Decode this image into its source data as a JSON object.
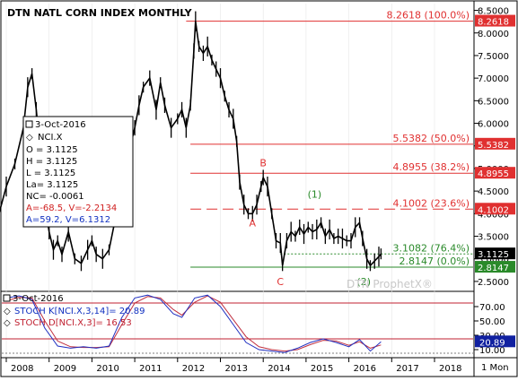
{
  "chart_data": {
    "type": "line",
    "title": "DTN NATL CORN INDEX MONTHLY",
    "watermark": "DTN ProphetX®",
    "interval_label": "1 Mon",
    "x_ticks": [
      "2008",
      "2009",
      "2010",
      "2011",
      "2012",
      "2013",
      "2014",
      "2015",
      "2016",
      "2017",
      "2018"
    ],
    "y_ticks": [
      "8.5000",
      "8.0000",
      "7.5000",
      "7.0000",
      "6.5000",
      "6.0000",
      "5.5000",
      "5.0000",
      "4.5000",
      "4.0000",
      "3.5000",
      "3.0000",
      "2.5000"
    ],
    "ylim": [
      2.3,
      8.65
    ],
    "fib_levels": [
      {
        "price": 8.2618,
        "label": "8.2618 (100.0%)",
        "tag": "8.2618",
        "color": "#e03030",
        "style": "solid",
        "x_start": 2012.2
      },
      {
        "price": 5.5382,
        "label": "5.5382 (50.0%)",
        "tag": "5.5382",
        "color": "#e03030",
        "style": "solid",
        "x_start": 2012.3
      },
      {
        "price": 4.8955,
        "label": "4.8955 (38.2%)",
        "tag": "4.8955",
        "color": "#e03030",
        "style": "solid",
        "x_start": 2012.3
      },
      {
        "price": 4.1002,
        "label": "4.1002 (23.6%)",
        "tag": "4.1002",
        "color": "#e03030",
        "style": "dashed",
        "x_start": 2012.3
      },
      {
        "price": 3.1082,
        "label": "3.1082 (76.4%)",
        "tag": "",
        "color": "#2a8a2a",
        "style": "dotted",
        "x_start": 2014.4
      },
      {
        "price": 2.8147,
        "label": "2.8147 (0.0%)",
        "tag": "2.8147",
        "color": "#2a8a2a",
        "style": "solid",
        "x_start": 2012.3
      }
    ],
    "last_price_tag": "3.1125",
    "annotations": [
      {
        "text": "A",
        "x": 2013.75,
        "y": 3.72,
        "color": "#e03030"
      },
      {
        "text": "B",
        "x": 2014.0,
        "y": 5.05,
        "color": "#e03030"
      },
      {
        "text": "C",
        "x": 2014.4,
        "y": 2.42,
        "color": "#e03030"
      },
      {
        "text": "(1)",
        "x": 2015.2,
        "y": 4.35,
        "color": "#2a8a2a"
      },
      {
        "text": "(2)",
        "x": 2016.35,
        "y": 2.42,
        "color": "#2a8a2a"
      }
    ],
    "price_series": [
      [
        2007.6,
        3.4
      ],
      [
        2007.8,
        3.9
      ],
      [
        2008.0,
        4.6
      ],
      [
        2008.2,
        5.1
      ],
      [
        2008.4,
        5.9
      ],
      [
        2008.5,
        6.8
      ],
      [
        2008.6,
        7.1
      ],
      [
        2008.7,
        6.3
      ],
      [
        2008.8,
        5.3
      ],
      [
        2008.9,
        4.2
      ],
      [
        2009.0,
        3.6
      ],
      [
        2009.1,
        3.2
      ],
      [
        2009.2,
        3.4
      ],
      [
        2009.3,
        3.1
      ],
      [
        2009.45,
        3.6
      ],
      [
        2009.6,
        3.0
      ],
      [
        2009.75,
        2.9
      ],
      [
        2009.9,
        3.2
      ],
      [
        2010.0,
        3.4
      ],
      [
        2010.1,
        3.1
      ],
      [
        2010.25,
        3.0
      ],
      [
        2010.4,
        3.2
      ],
      [
        2010.55,
        3.9
      ],
      [
        2010.7,
        4.6
      ],
      [
        2010.85,
        5.3
      ],
      [
        2011.0,
        5.9
      ],
      [
        2011.1,
        6.4
      ],
      [
        2011.2,
        6.8
      ],
      [
        2011.35,
        7.0
      ],
      [
        2011.5,
        6.3
      ],
      [
        2011.6,
        6.9
      ],
      [
        2011.7,
        6.4
      ],
      [
        2011.85,
        5.9
      ],
      [
        2012.0,
        6.1
      ],
      [
        2012.1,
        6.3
      ],
      [
        2012.2,
        5.9
      ],
      [
        2012.3,
        6.4
      ],
      [
        2012.38,
        7.6
      ],
      [
        2012.42,
        8.26
      ],
      [
        2012.5,
        7.7
      ],
      [
        2012.6,
        7.55
      ],
      [
        2012.7,
        7.7
      ],
      [
        2012.8,
        7.4
      ],
      [
        2012.9,
        7.2
      ],
      [
        2013.0,
        7.0
      ],
      [
        2013.1,
        6.6
      ],
      [
        2013.2,
        6.3
      ],
      [
        2013.3,
        6.1
      ],
      [
        2013.38,
        5.6
      ],
      [
        2013.45,
        4.7
      ],
      [
        2013.55,
        4.2
      ],
      [
        2013.65,
        4.0
      ],
      [
        2013.75,
        4.0
      ],
      [
        2013.85,
        4.2
      ],
      [
        2013.95,
        4.6
      ],
      [
        2014.0,
        4.8
      ],
      [
        2014.1,
        4.6
      ],
      [
        2014.2,
        4.0
      ],
      [
        2014.3,
        3.4
      ],
      [
        2014.4,
        3.35
      ],
      [
        2014.45,
        2.85
      ],
      [
        2014.55,
        3.4
      ],
      [
        2014.65,
        3.6
      ],
      [
        2014.75,
        3.5
      ],
      [
        2014.85,
        3.7
      ],
      [
        2014.95,
        3.55
      ],
      [
        2015.05,
        3.7
      ],
      [
        2015.15,
        3.6
      ],
      [
        2015.25,
        3.65
      ],
      [
        2015.35,
        3.8
      ],
      [
        2015.45,
        3.5
      ],
      [
        2015.55,
        3.65
      ],
      [
        2015.65,
        3.45
      ],
      [
        2015.75,
        3.5
      ],
      [
        2015.85,
        3.45
      ],
      [
        2015.95,
        3.4
      ],
      [
        2016.05,
        3.4
      ],
      [
        2016.15,
        3.7
      ],
      [
        2016.25,
        3.8
      ],
      [
        2016.32,
        3.45
      ],
      [
        2016.42,
        3.0
      ],
      [
        2016.5,
        2.85
      ],
      [
        2016.6,
        2.95
      ],
      [
        2016.7,
        3.05
      ],
      [
        2016.75,
        3.11
      ]
    ],
    "info_box": {
      "date": "3-Oct-2016",
      "symbol": "NCI.X",
      "lines": [
        "O = 3.1125",
        "H = 3.1125",
        "L = 3.1125",
        "La= 3.1125",
        "NC= -0.0061"
      ],
      "a_line_red": "A=-68.5, V=-2.2134",
      "a_line_blue": "A=59.2, V=6.1312"
    },
    "stoch": {
      "date": "3-Oct-2016",
      "k_label": "STOCH K[NCI.X,3,14]= 20.89",
      "d_label": "STOCH D[NCI.X,3]= 16.53",
      "y_ticks": [
        "70.00",
        "50.00",
        "30.00",
        "10.00"
      ],
      "ylim": [
        0,
        90
      ],
      "upper": 75,
      "lower": 25,
      "last_tag": "20.89",
      "k_color": "#2030c0",
      "d_color": "#c03040",
      "k_series": [
        [
          2008.0,
          82
        ],
        [
          2008.3,
          85
        ],
        [
          2008.6,
          80
        ],
        [
          2008.9,
          40
        ],
        [
          2009.2,
          15
        ],
        [
          2009.5,
          12
        ],
        [
          2009.8,
          14
        ],
        [
          2010.1,
          12
        ],
        [
          2010.4,
          15
        ],
        [
          2010.7,
          55
        ],
        [
          2011.0,
          82
        ],
        [
          2011.3,
          86
        ],
        [
          2011.6,
          80
        ],
        [
          2011.9,
          60
        ],
        [
          2012.1,
          55
        ],
        [
          2012.4,
          82
        ],
        [
          2012.7,
          86
        ],
        [
          2013.0,
          70
        ],
        [
          2013.3,
          45
        ],
        [
          2013.6,
          20
        ],
        [
          2013.9,
          10
        ],
        [
          2014.2,
          8
        ],
        [
          2014.5,
          6
        ],
        [
          2014.8,
          12
        ],
        [
          2015.1,
          20
        ],
        [
          2015.4,
          25
        ],
        [
          2015.7,
          20
        ],
        [
          2016.0,
          14
        ],
        [
          2016.25,
          24
        ],
        [
          2016.5,
          8
        ],
        [
          2016.75,
          20.89
        ]
      ],
      "d_series": [
        [
          2008.0,
          78
        ],
        [
          2008.3,
          83
        ],
        [
          2008.6,
          82
        ],
        [
          2008.9,
          50
        ],
        [
          2009.2,
          22
        ],
        [
          2009.5,
          14
        ],
        [
          2009.8,
          13
        ],
        [
          2010.1,
          13
        ],
        [
          2010.4,
          14
        ],
        [
          2010.7,
          45
        ],
        [
          2011.0,
          75
        ],
        [
          2011.3,
          84
        ],
        [
          2011.6,
          82
        ],
        [
          2011.9,
          66
        ],
        [
          2012.1,
          58
        ],
        [
          2012.4,
          76
        ],
        [
          2012.7,
          85
        ],
        [
          2013.0,
          76
        ],
        [
          2013.3,
          52
        ],
        [
          2013.6,
          28
        ],
        [
          2013.9,
          14
        ],
        [
          2014.2,
          10
        ],
        [
          2014.5,
          8
        ],
        [
          2014.8,
          10
        ],
        [
          2015.1,
          17
        ],
        [
          2015.4,
          23
        ],
        [
          2015.7,
          22
        ],
        [
          2016.0,
          16
        ],
        [
          2016.25,
          21
        ],
        [
          2016.5,
          12
        ],
        [
          2016.75,
          16.53
        ]
      ]
    }
  }
}
